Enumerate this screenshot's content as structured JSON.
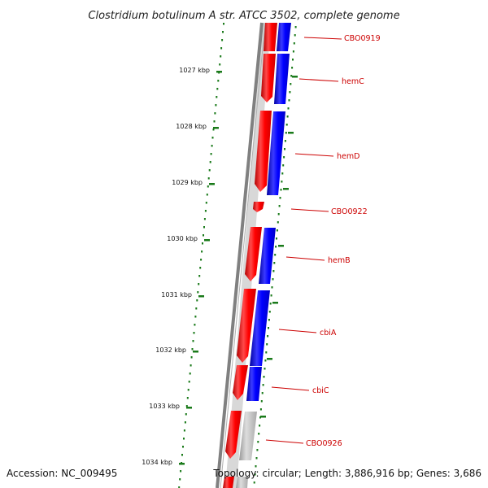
{
  "title": "Clostridium botulinum A str. ATCC 3502, complete genome",
  "accession": "Accession: NC_009495",
  "topology": "Topology: circular; Length: 3,886,916 bp; Genes: 3,686",
  "ruler": {
    "tick_labels": [
      "1027 kbp",
      "1028 kbp",
      "1029 kbp",
      "1030 kbp",
      "1031 kbp",
      "1032 kbp",
      "1033 kbp",
      "1034 kbp"
    ]
  },
  "genes": [
    {
      "name": "CBO0919"
    },
    {
      "name": "hemC"
    },
    {
      "name": "hemD"
    },
    {
      "name": "CBO0922"
    },
    {
      "name": "hemB"
    },
    {
      "name": "cbiA"
    },
    {
      "name": "cbiC"
    },
    {
      "name": "CBO0926"
    }
  ],
  "colors": {
    "cds_forward": "#ff0000",
    "cds_blue": "#0000ff",
    "cds_grey": "#bbbbbb",
    "backbone": "#808080",
    "ruler_green": "#1a7a1a",
    "label_red": "#cc0000"
  }
}
